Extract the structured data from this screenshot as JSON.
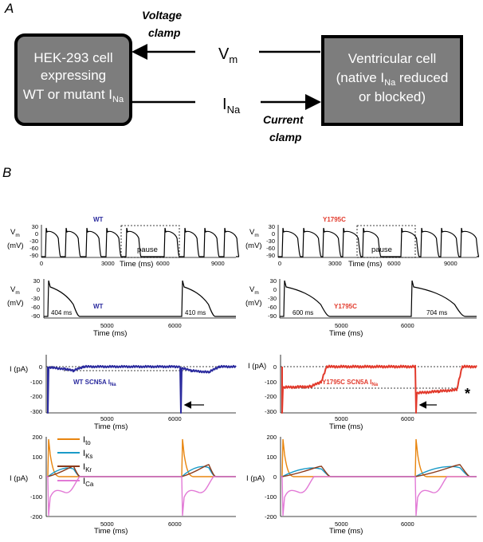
{
  "panel_a": {
    "letter": "A",
    "hek_box": {
      "line1": "HEK-293 cell",
      "line2": "expressing",
      "line3": "WT or mutant I",
      "line3_sub": "Na"
    },
    "vent_box": {
      "line1": "Ventricular cell",
      "line2a": "(native I",
      "line2_sub": "Na",
      "line2b": " reduced",
      "line3": "or blocked)"
    },
    "vm": {
      "main": "V",
      "sub": "m"
    },
    "ina": {
      "main": "I",
      "sub": "Na"
    },
    "voltage_clamp": {
      "line1": "Voltage",
      "line2": "clamp"
    },
    "current_clamp": {
      "line1": "Current",
      "line2": "clamp"
    }
  },
  "panel_b": {
    "letter": "B",
    "vm_label": {
      "main": "V",
      "sub": "m"
    },
    "mv_label": "(mV)",
    "ipa_label": "I (pA)",
    "time_label": "Time (ms)",
    "pause_label": "pause",
    "wt_label": "WT",
    "mut_label": "Y1795C",
    "row2": {
      "wt_apd1": "404 ms",
      "wt_apd2": "410 ms",
      "mut_apd1": "600 ms",
      "mut_apd2": "704 ms"
    },
    "row3": {
      "wt_text": "WT SCN5A I",
      "mut_text": "Y1795C SCN5A I",
      "sub": "Na",
      "asterisk": "*"
    },
    "legend": [
      {
        "main": "I",
        "sub": "to",
        "color": "#e8850f"
      },
      {
        "main": "I",
        "sub": "Ks",
        "color": "#1a9bc8"
      },
      {
        "main": "I",
        "sub": "Kr",
        "color": "#8b3a1a"
      },
      {
        "main": "I",
        "sub": "Ca",
        "color": "#e27ad6"
      }
    ],
    "colors": {
      "wt": "#2b2b9e",
      "mut": "#e23a2c"
    }
  },
  "chart_data": [
    {
      "type": "line",
      "panel": "B row1 left",
      "ylabel": "Vm (mV)",
      "xlabel": "Time (ms)",
      "xticks": [
        0,
        3000,
        6000,
        9000
      ],
      "yticks": [
        30,
        0,
        -30,
        -60,
        -90
      ],
      "ylim": [
        -95,
        35
      ]
    },
    {
      "type": "line",
      "panel": "B row1 right",
      "ylabel": "Vm (mV)",
      "xlabel": "Time (ms)",
      "xticks": [
        0,
        3000,
        6000,
        9000
      ],
      "yticks": [
        30,
        0,
        -30,
        -60,
        -90
      ],
      "ylim": [
        -95,
        35
      ]
    },
    {
      "type": "line",
      "panel": "B row2 left",
      "ylabel": "Vm (mV)",
      "xlabel": "Time (ms)",
      "xticks": [
        5000,
        6000
      ],
      "yticks": [
        30,
        0,
        -30,
        -60,
        -90
      ],
      "ylim": [
        -95,
        35
      ],
      "annotations": [
        "404 ms",
        "410 ms"
      ]
    },
    {
      "type": "line",
      "panel": "B row2 right",
      "ylabel": "Vm (mV)",
      "xlabel": "Time (ms)",
      "xticks": [
        5000,
        6000
      ],
      "yticks": [
        30,
        0,
        -30,
        -60,
        -90
      ],
      "ylim": [
        -95,
        35
      ],
      "annotations": [
        "600 ms",
        "704 ms"
      ]
    },
    {
      "type": "line",
      "panel": "B row3 left",
      "ylabel": "I (pA)",
      "xlabel": "Time (ms)",
      "xticks": [
        5000,
        6000
      ],
      "yticks": [
        0,
        -100,
        -200,
        -300
      ],
      "ylim": [
        -300,
        20
      ]
    },
    {
      "type": "line",
      "panel": "B row3 right",
      "ylabel": "I (pA)",
      "xlabel": "Time (ms)",
      "xticks": [
        5000,
        6000
      ],
      "yticks": [
        0,
        -100,
        -200,
        -300
      ],
      "ylim": [
        -300,
        20
      ]
    },
    {
      "type": "line",
      "panel": "B row4 left",
      "ylabel": "I (pA)",
      "xlabel": "Time (ms)",
      "xticks": [
        5000,
        6000
      ],
      "yticks": [
        200,
        100,
        0,
        -100,
        -200
      ],
      "ylim": [
        -200,
        200
      ],
      "series": [
        {
          "name": "Ito"
        },
        {
          "name": "IKs"
        },
        {
          "name": "IKr"
        },
        {
          "name": "ICa"
        }
      ]
    },
    {
      "type": "line",
      "panel": "B row4 right",
      "ylabel": "I (pA)",
      "xlabel": "Time (ms)",
      "xticks": [
        5000,
        6000
      ],
      "yticks": [
        200,
        100,
        0,
        -100,
        -200
      ],
      "ylim": [
        -200,
        200
      ],
      "series": [
        {
          "name": "Ito"
        },
        {
          "name": "IKs"
        },
        {
          "name": "IKr"
        },
        {
          "name": "ICa"
        }
      ]
    }
  ]
}
